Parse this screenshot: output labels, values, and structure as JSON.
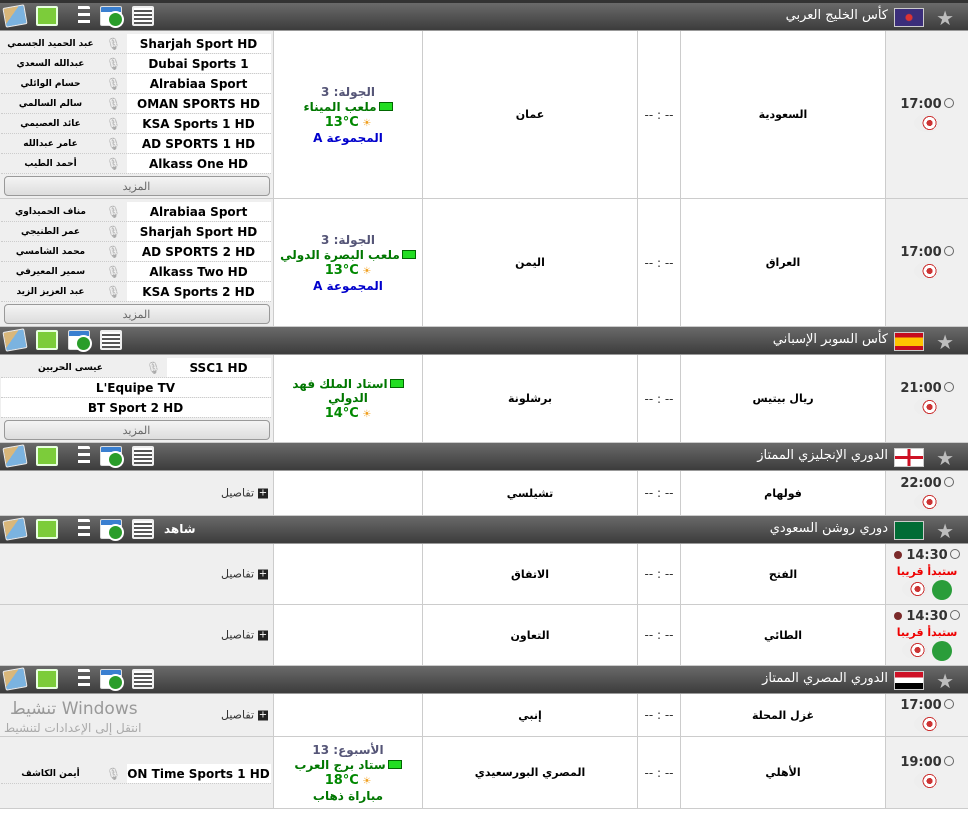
{
  "more_label": "المزيد",
  "details_label": "تفاصيل",
  "score_placeholder": "-- : --",
  "soon_label": "ستبدأ قريبا",
  "watermark": {
    "title": "تنشيط Windows",
    "subtitle": "انتقل إلى الإعدادات لتنشيط"
  },
  "leagues": [
    {
      "name": "كأس الخليج العربي",
      "flag": "gulf-cup-logo",
      "colors": [
        "#3b2e7a",
        "#d33"
      ],
      "tools": [
        "map",
        "field",
        "standings",
        "calendar",
        "table"
      ],
      "matches": [
        {
          "time": "17:00",
          "home": "السعودية",
          "away": "عمان",
          "score": "-- : --",
          "height": 168,
          "info": {
            "round": "الجولة: 3",
            "stadium": "ملعب الميناء",
            "temp": "13°C",
            "extra": "المجموعة A",
            "extra_color": "#0000cc"
          },
          "channels": [
            {
              "name": "Sharjah Sport HD",
              "commentator": "عبد الحميد الجسمي"
            },
            {
              "name": "Dubai Sports 1",
              "commentator": "عبدالله السعدي"
            },
            {
              "name": "Alrabiaa Sport",
              "commentator": "حسام الوائلي"
            },
            {
              "name": "OMAN SPORTS HD",
              "commentator": "سالم السالمي"
            },
            {
              "name": "KSA Sports 1 HD",
              "commentator": "عائد العصيمي"
            },
            {
              "name": "AD SPORTS 1 HD",
              "commentator": "عامر عبدالله"
            },
            {
              "name": "Alkass One HD",
              "commentator": "أحمد الطيب"
            }
          ],
          "more": true
        },
        {
          "time": "17:00",
          "home": "العراق",
          "away": "اليمن",
          "score": "-- : --",
          "height": 128,
          "info": {
            "round": "الجولة: 3",
            "stadium": "ملعب البصرة الدولي",
            "temp": "13°C",
            "extra": "المجموعة A",
            "extra_color": "#0000cc"
          },
          "channels": [
            {
              "name": "Alrabiaa Sport",
              "commentator": "مناف الحميداوي"
            },
            {
              "name": "Sharjah Sport HD",
              "commentator": "عمر الطنيجي"
            },
            {
              "name": "AD SPORTS 2 HD",
              "commentator": "محمد الشامسي"
            },
            {
              "name": "Alkass Two HD",
              "commentator": "سمير المعيرفي"
            },
            {
              "name": "KSA Sports 2 HD",
              "commentator": "عبد العزيز الزيد"
            }
          ],
          "more": true
        }
      ]
    },
    {
      "name": "كأس السوبر الإسباني",
      "flag": "spain-flag",
      "colors": [
        "#c60b1e",
        "#ffc400"
      ],
      "tools": [
        "map",
        "field",
        "calendar",
        "table"
      ],
      "matches": [
        {
          "time": "21:00",
          "home": "ريال بيتيس",
          "away": "برشلونة",
          "score": "-- : --",
          "height": 88,
          "info": {
            "stadium": "استاد الملك فهد الدولي",
            "temp": "14°C"
          },
          "channels": [
            {
              "name": "SSC1 HD",
              "commentator": "عيسى الحربين"
            },
            {
              "name": "L'Equipe TV"
            },
            {
              "name": "BT Sport 2 HD"
            }
          ],
          "more": true
        }
      ]
    },
    {
      "name": "الدوري الإنجليزي الممتاز",
      "flag": "england-flag",
      "colors": [
        "#fff",
        "#ce1124"
      ],
      "tools": [
        "map",
        "field",
        "standings",
        "calendar",
        "table"
      ],
      "matches": [
        {
          "time": "22:00",
          "home": "فولهام",
          "away": "تشيلسي",
          "score": "-- : --",
          "height": 45,
          "details": true
        }
      ]
    },
    {
      "name": "دوري روشن السعودي",
      "flag": "saudi-flag",
      "colors": [
        "#006c35",
        "#fff"
      ],
      "tools": [
        "map",
        "field",
        "standings",
        "calendar",
        "table"
      ],
      "badge": "شاهد",
      "matches": [
        {
          "time": "14:30",
          "home": "الفتح",
          "away": "الاتفاق",
          "score": "-- : --",
          "height": 61,
          "details": true,
          "soon": true
        },
        {
          "time": "14:30",
          "home": "الطائي",
          "away": "التعاون",
          "score": "-- : --",
          "height": 61,
          "details": true,
          "soon": true
        }
      ]
    },
    {
      "name": "الدوري المصري الممتاز",
      "flag": "egypt-flag",
      "colors": [
        "#ce1126",
        "#fff",
        "#000"
      ],
      "tools": [
        "map",
        "field",
        "standings",
        "calendar",
        "table"
      ],
      "matches": [
        {
          "time": "17:00",
          "home": "غزل المحلة",
          "away": "إنبي",
          "score": "-- : --",
          "height": 43,
          "details": true
        },
        {
          "time": "19:00",
          "home": "الأهلي",
          "away": "المصري البورسعيدي",
          "score": "-- : --",
          "height": 72,
          "info": {
            "round": "الأسبوع: 13",
            "stadium": "ستاد برج العرب",
            "temp": "18°C",
            "extra": "مباراة ذهاب",
            "extra_color": "#007700"
          },
          "channels": [
            {
              "name": "ON Time Sports 1 HD",
              "commentator": "أيمن الكاشف"
            }
          ]
        }
      ]
    }
  ]
}
